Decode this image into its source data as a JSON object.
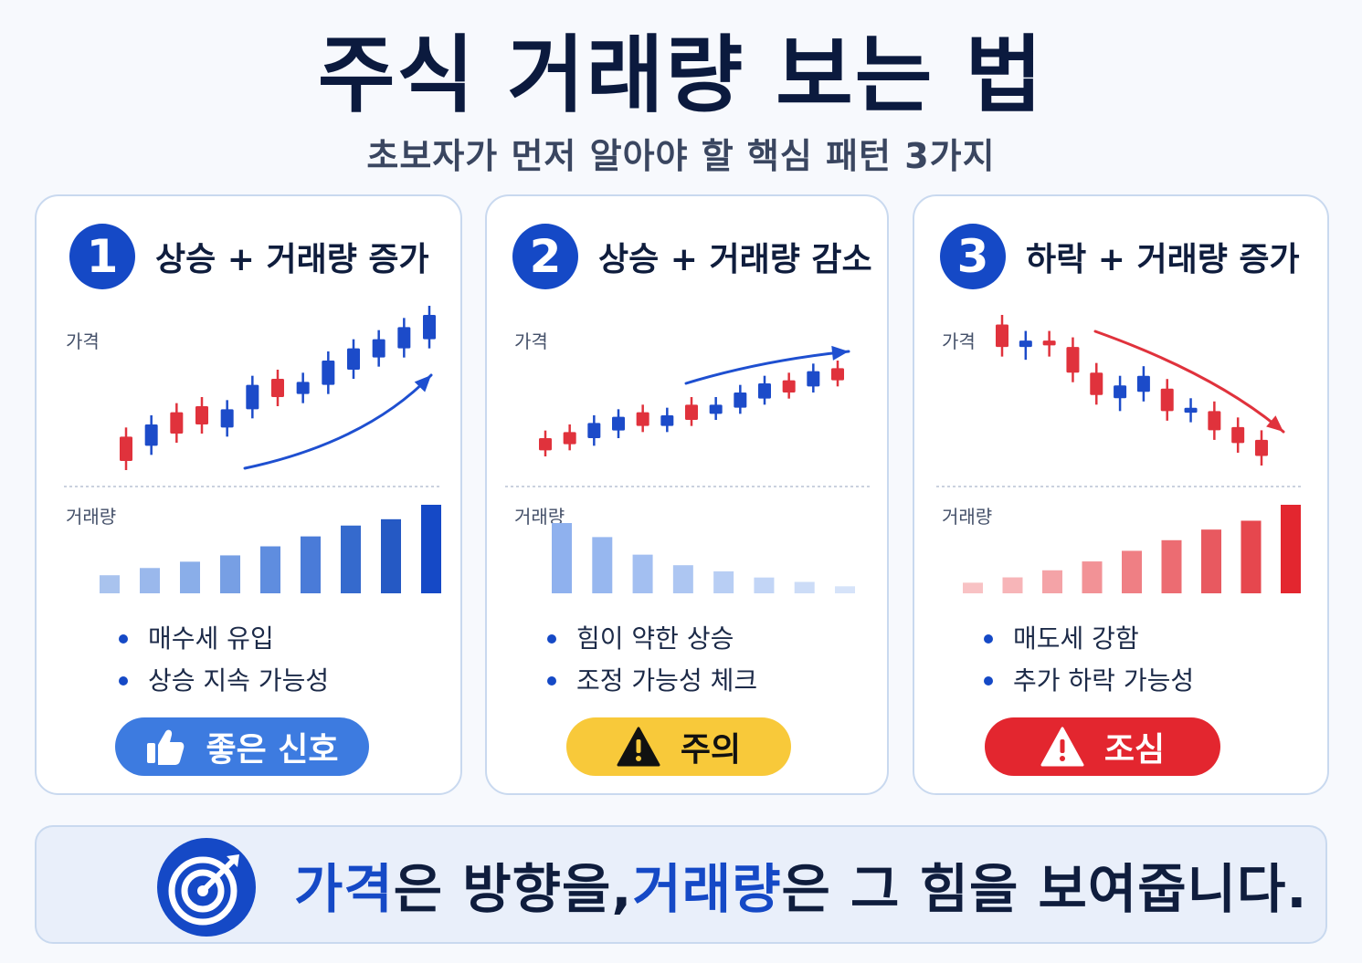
{
  "title": "주식 거래량 보는 법",
  "subtitle": "초보자가 먼저 알아야 할 핵심 패턴 3가지",
  "colors": {
    "navy": "#0b1a3e",
    "accent_blue": "#1549c6",
    "candle_up": "#e0323c",
    "candle_down": "#1c4bc9",
    "warning_yellow": "#f8c93a",
    "danger_red": "#e3262f"
  },
  "cards": [
    {
      "number": "1",
      "title": "상승 + 거래량 증가",
      "price_label": "가격",
      "volume_label": "거래량",
      "bullets": [
        "매수세 유입",
        "상승 지속 가능성"
      ],
      "badge": {
        "label": "좋은 신호",
        "icon": "thumbs-up-icon"
      }
    },
    {
      "number": "2",
      "title": "상승 + 거래량 감소",
      "price_label": "가격",
      "volume_label": "거래량",
      "bullets": [
        "힘이 약한 상승",
        "조정 가능성 체크"
      ],
      "badge": {
        "label": "주의",
        "icon": "warning-icon"
      }
    },
    {
      "number": "3",
      "title": "하락 + 거래량 증가",
      "price_label": "가격",
      "volume_label": "거래량",
      "bullets": [
        "매도세 강함",
        "추가 하락 가능성"
      ],
      "badge": {
        "label": "조심",
        "icon": "warning-icon"
      }
    }
  ],
  "footer": {
    "icon": "target-icon",
    "highlight_1": "가격",
    "text_1": "은 방향을, ",
    "highlight_2": "거래량",
    "text_2": "은 그 힘을 보여줍니다."
  },
  "chart_data": [
    {
      "type": "candlestick",
      "title": "",
      "candles": [
        {
          "o": 1.2,
          "c": 2.8,
          "h": 3.4,
          "l": 0.6,
          "color": "red"
        },
        {
          "o": 2.2,
          "c": 3.6,
          "h": 4.2,
          "l": 1.6,
          "color": "blue"
        },
        {
          "o": 3.0,
          "c": 4.4,
          "h": 5.0,
          "l": 2.4,
          "color": "red"
        },
        {
          "o": 3.6,
          "c": 4.8,
          "h": 5.4,
          "l": 3.0,
          "color": "red"
        },
        {
          "o": 3.4,
          "c": 4.6,
          "h": 5.2,
          "l": 2.8,
          "color": "blue"
        },
        {
          "o": 4.6,
          "c": 6.2,
          "h": 6.8,
          "l": 4.0,
          "color": "blue"
        },
        {
          "o": 5.4,
          "c": 6.6,
          "h": 7.2,
          "l": 4.8,
          "color": "red"
        },
        {
          "o": 5.6,
          "c": 6.4,
          "h": 7.0,
          "l": 5.0,
          "color": "blue"
        },
        {
          "o": 6.2,
          "c": 7.8,
          "h": 8.4,
          "l": 5.6,
          "color": "blue"
        },
        {
          "o": 7.2,
          "c": 8.6,
          "h": 9.2,
          "l": 6.6,
          "color": "blue"
        },
        {
          "o": 8.0,
          "c": 9.2,
          "h": 9.8,
          "l": 7.4,
          "color": "blue"
        },
        {
          "o": 8.6,
          "c": 10.0,
          "h": 10.6,
          "l": 8.0,
          "color": "blue"
        },
        {
          "o": 9.2,
          "c": 10.8,
          "h": 11.4,
          "l": 8.6,
          "color": "blue"
        }
      ],
      "volumes": [
        2,
        2.8,
        3.5,
        4.2,
        5.2,
        6.3,
        7.5,
        8.2,
        9.8
      ],
      "trend": "up"
    },
    {
      "type": "candlestick",
      "title": "",
      "candles": [
        {
          "o": 1.0,
          "c": 1.8,
          "h": 2.3,
          "l": 0.6,
          "color": "red"
        },
        {
          "o": 1.4,
          "c": 2.2,
          "h": 2.7,
          "l": 1.0,
          "color": "red"
        },
        {
          "o": 1.8,
          "c": 2.8,
          "h": 3.3,
          "l": 1.3,
          "color": "blue"
        },
        {
          "o": 2.3,
          "c": 3.2,
          "h": 3.7,
          "l": 1.8,
          "color": "blue"
        },
        {
          "o": 2.6,
          "c": 3.5,
          "h": 4.0,
          "l": 2.2,
          "color": "red"
        },
        {
          "o": 2.6,
          "c": 3.3,
          "h": 3.8,
          "l": 2.2,
          "color": "blue"
        },
        {
          "o": 3.0,
          "c": 4.0,
          "h": 4.5,
          "l": 2.6,
          "color": "red"
        },
        {
          "o": 3.4,
          "c": 4.0,
          "h": 4.5,
          "l": 3.0,
          "color": "blue"
        },
        {
          "o": 3.8,
          "c": 4.8,
          "h": 5.3,
          "l": 3.4,
          "color": "blue"
        },
        {
          "o": 4.4,
          "c": 5.4,
          "h": 5.9,
          "l": 4.0,
          "color": "blue"
        },
        {
          "o": 4.8,
          "c": 5.6,
          "h": 6.1,
          "l": 4.4,
          "color": "red"
        },
        {
          "o": 5.2,
          "c": 6.2,
          "h": 6.7,
          "l": 4.8,
          "color": "blue"
        },
        {
          "o": 5.6,
          "c": 6.4,
          "h": 6.9,
          "l": 5.2,
          "color": "red"
        }
      ],
      "volumes": [
        8.0,
        6.4,
        4.4,
        3.2,
        2.5,
        1.8,
        1.3,
        0.8
      ],
      "trend": "up"
    },
    {
      "type": "candlestick",
      "title": "",
      "candles": [
        {
          "o": 10.6,
          "c": 9.2,
          "h": 11.2,
          "l": 8.6,
          "color": "red"
        },
        {
          "o": 9.6,
          "c": 9.2,
          "h": 10.2,
          "l": 8.4,
          "color": "blue"
        },
        {
          "o": 9.6,
          "c": 9.3,
          "h": 10.2,
          "l": 8.6,
          "color": "red"
        },
        {
          "o": 9.2,
          "c": 7.6,
          "h": 9.8,
          "l": 7.0,
          "color": "red"
        },
        {
          "o": 7.6,
          "c": 6.2,
          "h": 8.2,
          "l": 5.6,
          "color": "red"
        },
        {
          "o": 6.8,
          "c": 6.0,
          "h": 7.4,
          "l": 5.2,
          "color": "blue"
        },
        {
          "o": 7.4,
          "c": 6.4,
          "h": 8.0,
          "l": 5.8,
          "color": "blue"
        },
        {
          "o": 6.6,
          "c": 5.2,
          "h": 7.2,
          "l": 4.6,
          "color": "red"
        },
        {
          "o": 5.4,
          "c": 5.1,
          "h": 6.0,
          "l": 4.5,
          "color": "blue"
        },
        {
          "o": 5.2,
          "c": 4.0,
          "h": 5.8,
          "l": 3.4,
          "color": "red"
        },
        {
          "o": 4.2,
          "c": 3.2,
          "h": 4.8,
          "l": 2.6,
          "color": "red"
        },
        {
          "o": 3.4,
          "c": 2.4,
          "h": 4.0,
          "l": 1.8,
          "color": "red"
        }
      ],
      "volumes": [
        1.2,
        1.8,
        2.6,
        3.6,
        4.8,
        6.0,
        7.2,
        8.2,
        10.0
      ],
      "trend": "down"
    }
  ]
}
